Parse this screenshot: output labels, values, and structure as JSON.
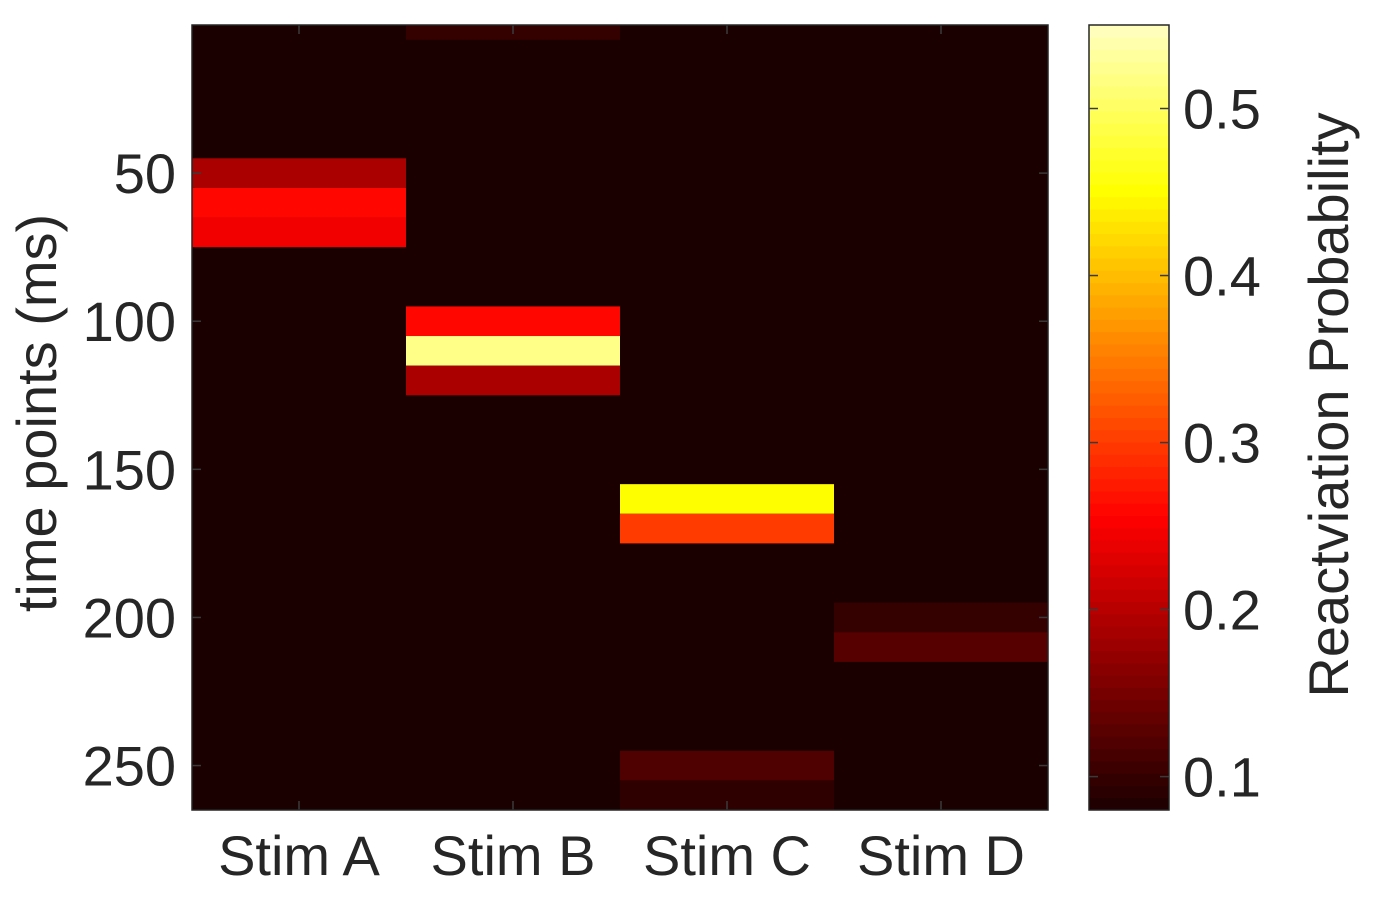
{
  "chart_data": {
    "type": "heatmap",
    "title": "",
    "xlabel": "",
    "ylabel": "time points (ms)",
    "categories": [
      "Stim A",
      "Stim B",
      "Stim C",
      "Stim D"
    ],
    "ylim": [
      0,
      265
    ],
    "yticks": [
      50,
      100,
      150,
      200,
      250
    ],
    "y_direction": "top-to-bottom",
    "colorbar": {
      "label": "Reactviation Probability",
      "range": [
        0.08,
        0.55
      ],
      "ticks": [
        0.1,
        0.2,
        0.3,
        0.4,
        0.5
      ],
      "tick_labels": [
        "0.1",
        "0.2",
        "0.3",
        "0.4",
        "0.5"
      ],
      "colormap": "hot"
    },
    "background_value": 0.08,
    "cells": [
      {
        "stim": "Stim B",
        "t_start": 0,
        "t_end": 5,
        "value": 0.1
      },
      {
        "stim": "Stim A",
        "t_start": 45,
        "t_end": 55,
        "value": 0.19
      },
      {
        "stim": "Stim A",
        "t_start": 55,
        "t_end": 65,
        "value": 0.26
      },
      {
        "stim": "Stim A",
        "t_start": 65,
        "t_end": 75,
        "value": 0.245
      },
      {
        "stim": "Stim B",
        "t_start": 95,
        "t_end": 105,
        "value": 0.26
      },
      {
        "stim": "Stim B",
        "t_start": 105,
        "t_end": 115,
        "value": 0.52
      },
      {
        "stim": "Stim B",
        "t_start": 115,
        "t_end": 125,
        "value": 0.19
      },
      {
        "stim": "Stim C",
        "t_start": 155,
        "t_end": 165,
        "value": 0.45
      },
      {
        "stim": "Stim C",
        "t_start": 165,
        "t_end": 175,
        "value": 0.3
      },
      {
        "stim": "Stim D",
        "t_start": 195,
        "t_end": 205,
        "value": 0.1
      },
      {
        "stim": "Stim D",
        "t_start": 205,
        "t_end": 215,
        "value": 0.125
      },
      {
        "stim": "Stim C",
        "t_start": 245,
        "t_end": 255,
        "value": 0.12
      },
      {
        "stim": "Stim C",
        "t_start": 255,
        "t_end": 265,
        "value": 0.095
      }
    ]
  }
}
